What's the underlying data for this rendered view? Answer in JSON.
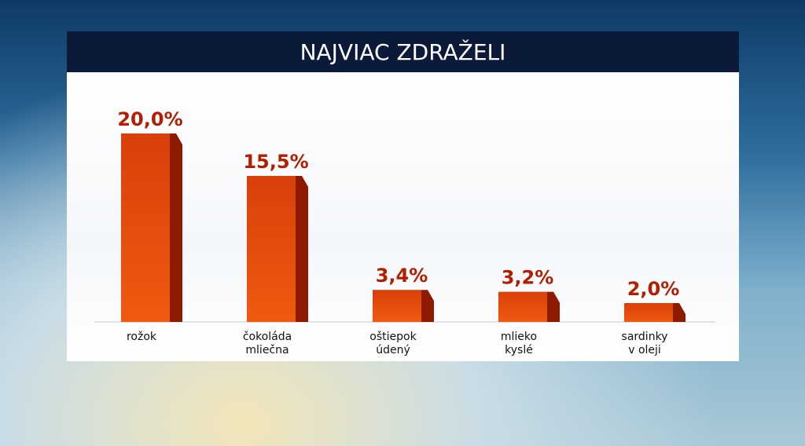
{
  "chart_data": {
    "type": "bar",
    "title": "NAJVIAC ZDRAŽELI",
    "categories": [
      "rožok",
      "čokoláda\nmliečna",
      "oštiepok\núdený",
      "mlieko\nkyslé",
      "sardinky\nv oleji"
    ],
    "values": [
      20.0,
      15.5,
      3.4,
      3.2,
      2.0
    ],
    "value_labels": [
      "20,0%",
      "15,5%",
      "3,4%",
      "3,2%",
      "2,0%"
    ],
    "color": "#e04a0a"
  }
}
